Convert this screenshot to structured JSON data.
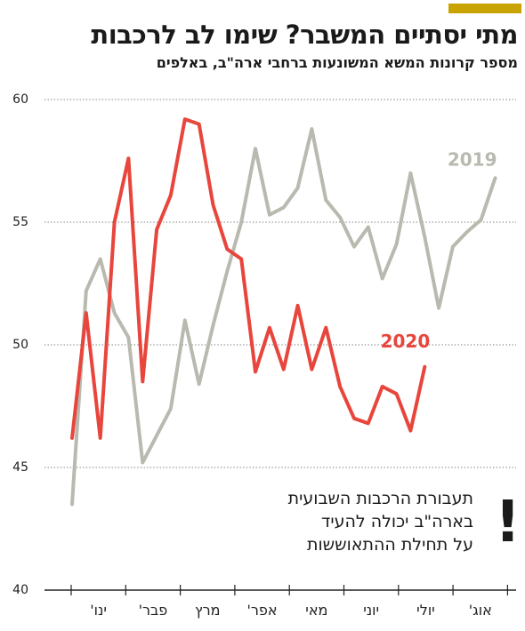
{
  "header": {
    "title": "מתי יסתיים המשבר? שימו לב לרכבות",
    "subtitle": "מספר קרונות המשא המשונעות ברחבי ארה\"ב, באלפים"
  },
  "annotation": {
    "lines": [
      "תעבורת הרכבות השבועית",
      "בארה\"ב יכולה להעיד",
      "על תחילת ההתאוששות"
    ],
    "mark": "!"
  },
  "chart_data": {
    "type": "line",
    "title": "מתי יסתיים המשבר? שימו לב לרכבות",
    "subtitle": "מספר קרונות המשא המשונעות ברחבי ארה\"ב, באלפים",
    "ylim": [
      40,
      60
    ],
    "yticks": [
      40,
      45,
      50,
      55,
      60
    ],
    "grid": true,
    "x_axis": "weekly, January to August",
    "month_labels": [
      "ינו'",
      "פבר'",
      "מרץ",
      "אפר'",
      "מאי",
      "יוני",
      "יולי",
      "אוג'"
    ],
    "colors": {
      "2019": "#b9b9b0",
      "2020": "#e8453c"
    },
    "series": [
      {
        "name": "2019",
        "values": [
          43.5,
          52.2,
          53.5,
          51.3,
          50.3,
          45.2,
          46.3,
          47.4,
          51.0,
          48.4,
          50.8,
          53.0,
          55.0,
          58.0,
          55.3,
          55.6,
          56.4,
          58.8,
          55.9,
          55.2,
          54.0,
          54.8,
          52.7,
          54.1,
          57.0,
          54.4,
          51.5,
          54.0,
          54.6,
          55.1,
          56.8
        ]
      },
      {
        "name": "2020",
        "values": [
          46.2,
          51.3,
          46.2,
          55.0,
          57.6,
          48.5,
          54.7,
          56.1,
          59.2,
          59.0,
          55.7,
          53.9,
          53.5,
          48.9,
          50.7,
          49.0,
          51.6,
          49.0,
          50.7,
          48.3,
          47.0,
          46.8,
          48.3,
          48.0,
          46.5,
          49.1
        ]
      }
    ]
  }
}
